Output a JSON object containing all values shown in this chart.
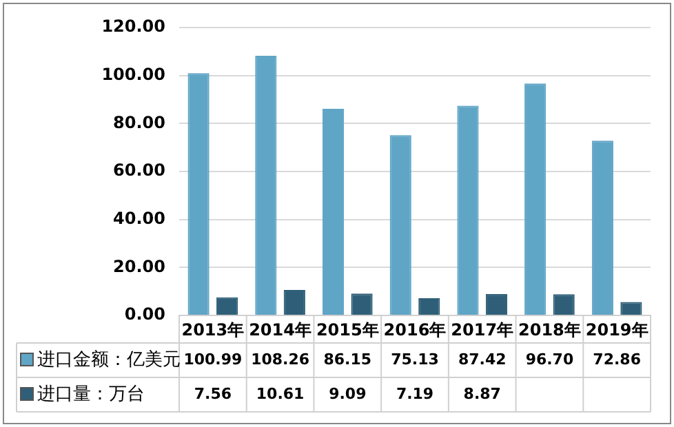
{
  "chart_data": {
    "type": "bar",
    "categories": [
      "2013年",
      "2014年",
      "2015年",
      "2016年",
      "2017年",
      "2018年",
      "2019年"
    ],
    "series": [
      {
        "name": "进口金额：亿美元",
        "color": "#5fa5c6",
        "values": [
          100.99,
          108.26,
          86.15,
          75.13,
          87.42,
          96.7,
          72.86
        ],
        "value_labels": [
          "100.99",
          "108.26",
          "86.15",
          "75.13",
          "87.42",
          "96.70",
          "72.86"
        ]
      },
      {
        "name": "进口量：万台",
        "color": "#2f5f78",
        "values": [
          7.56,
          10.61,
          9.09,
          7.19,
          8.87,
          8.8,
          5.6
        ],
        "value_labels": [
          "7.56",
          "10.61",
          "9.09",
          "7.19",
          "8.87",
          null,
          null
        ]
      }
    ],
    "ylim": [
      0,
      120
    ],
    "yticks": [
      {
        "value": 0,
        "label": "0.00"
      },
      {
        "value": 20,
        "label": "20.00"
      },
      {
        "value": 40,
        "label": "40.00"
      },
      {
        "value": 60,
        "label": "60.00"
      },
      {
        "value": 80,
        "label": "80.00"
      },
      {
        "value": 100,
        "label": "100.00"
      },
      {
        "value": 120,
        "label": "120.00"
      }
    ],
    "grid": "y",
    "legend": "bottom"
  }
}
